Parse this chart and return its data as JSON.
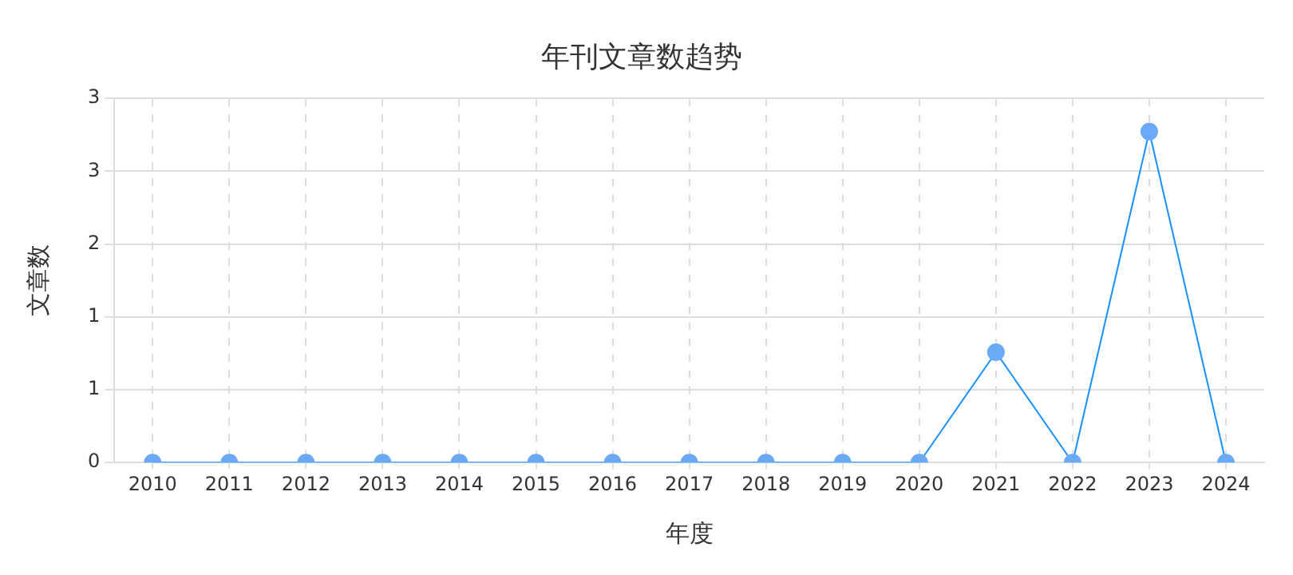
{
  "chart_data": {
    "type": "line",
    "title": "年刊文章数趋势",
    "xlabel": "年度",
    "ylabel": "文章数",
    "categories": [
      "2010",
      "2011",
      "2012",
      "2013",
      "2014",
      "2015",
      "2016",
      "2017",
      "2018",
      "2019",
      "2020",
      "2021",
      "2022",
      "2023",
      "2024"
    ],
    "series": [
      {
        "color": "#1890ff",
        "values": [
          0,
          0,
          0,
          0,
          0,
          0,
          0,
          0,
          0,
          0,
          0,
          1,
          0,
          3,
          0
        ]
      }
    ],
    "ylim": [
      0,
      3.3
    ],
    "yticks": [
      0,
      {
        "value": 0.66,
        "label": "1"
      },
      {
        "value": 1.32,
        "label": "1"
      },
      {
        "value": 1.98,
        "label": "2"
      },
      {
        "value": 2.64,
        "label": "3"
      },
      {
        "value": 3.3,
        "label": "3"
      }
    ],
    "grid": true,
    "marker": "circle",
    "line_style": "solid",
    "legend": false
  }
}
